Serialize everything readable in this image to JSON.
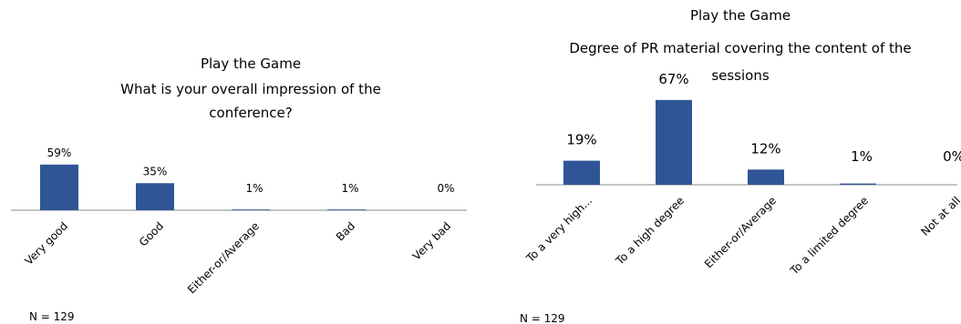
{
  "chart_data": [
    {
      "type": "bar",
      "title": "Play the Game",
      "subtitle_lines": [
        "What is your overall impression of the",
        "conference?"
      ],
      "categories": [
        "Very good",
        "Good",
        "Either-or/Average",
        "Bad",
        "Very bad"
      ],
      "values": [
        59,
        35,
        1,
        1,
        0
      ],
      "value_labels": [
        "59%",
        "35%",
        "1%",
        "1%",
        "0%"
      ],
      "ylim": [
        0,
        100
      ],
      "bar_color": "#2f5597",
      "grid": false,
      "note": "N = 129"
    },
    {
      "type": "bar",
      "title": "Play the Game",
      "subtitle_lines": [
        "Degree of PR material covering the content of the",
        "sessions"
      ],
      "categories": [
        "To a very high...",
        "To a high degree",
        "Either-or/Average",
        "To a limited degree",
        "Not at all"
      ],
      "values": [
        19,
        67,
        12,
        1,
        0
      ],
      "value_labels": [
        "19%",
        "67%",
        "12%",
        "1%",
        "0%"
      ],
      "ylim": [
        0,
        100
      ],
      "bar_color": "#2f5597",
      "grid": false,
      "note": "N = 129"
    }
  ]
}
